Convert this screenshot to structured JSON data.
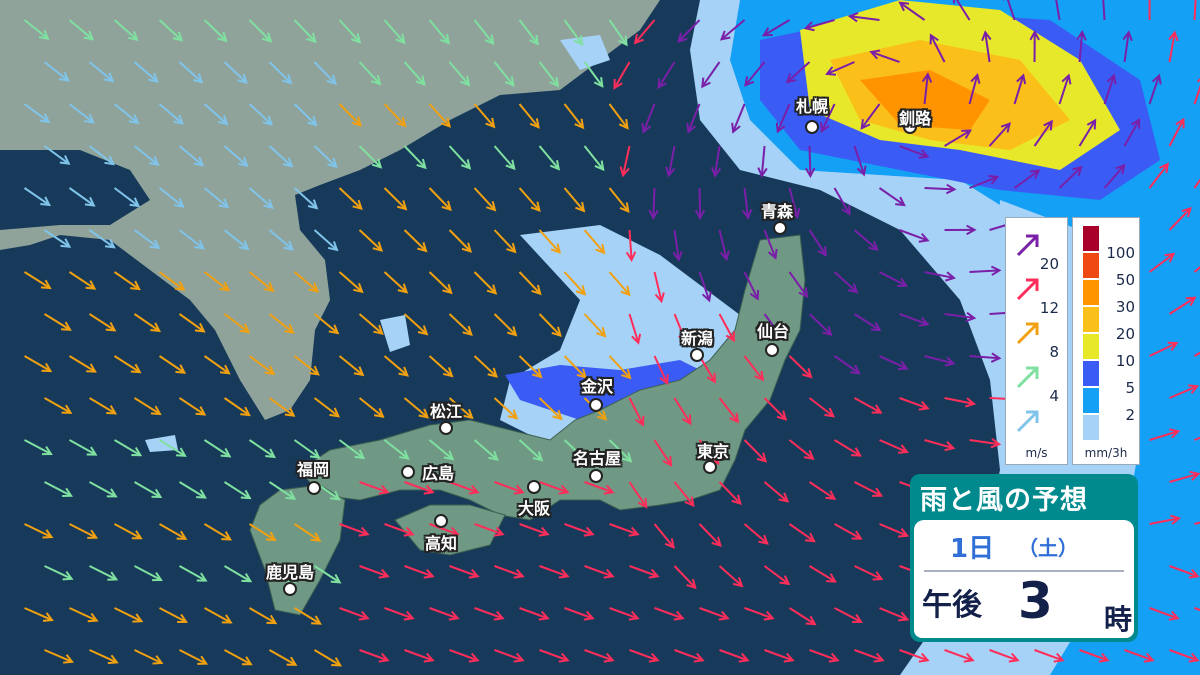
{
  "title": "雨と風の予想",
  "date": {
    "day": "1日",
    "weekday": "（土）"
  },
  "time": {
    "period": "午後",
    "hour": "3",
    "suffix": "時"
  },
  "cities": [
    {
      "name": "札幌"
    },
    {
      "name": "釧路"
    },
    {
      "name": "青森"
    },
    {
      "name": "新潟"
    },
    {
      "name": "仙台"
    },
    {
      "name": "金沢"
    },
    {
      "name": "松江"
    },
    {
      "name": "福岡"
    },
    {
      "name": "広島"
    },
    {
      "name": "名古屋"
    },
    {
      "name": "東京"
    },
    {
      "name": "大阪"
    },
    {
      "name": "高知"
    },
    {
      "name": "鹿児島"
    }
  ],
  "wind_legend": {
    "unit": "m/s",
    "levels": [
      {
        "value": "20",
        "color": "#7a1fa8"
      },
      {
        "value": "12",
        "color": "#ff2d5a"
      },
      {
        "value": "8",
        "color": "#f0a010"
      },
      {
        "value": "4",
        "color": "#7fe0a0"
      },
      {
        "value": "",
        "color": "#80c4ea"
      }
    ]
  },
  "rain_legend": {
    "unit": "mm/3h",
    "levels": [
      {
        "value": "100",
        "color": "#a8002a"
      },
      {
        "value": "50",
        "color": "#f04a14"
      },
      {
        "value": "30",
        "color": "#ff9400"
      },
      {
        "value": "20",
        "color": "#fbbf1a"
      },
      {
        "value": "10",
        "color": "#e8e82a"
      },
      {
        "value": "5",
        "color": "#3a5cf5"
      },
      {
        "value": "2",
        "color": "#13a0f5"
      },
      {
        "value": "",
        "color": "#a6d2f7"
      }
    ]
  },
  "colors": {
    "ocean": "#173a5a",
    "continent": "#8fa39b",
    "japan": "#6f9985",
    "panel": "#008a8e"
  }
}
